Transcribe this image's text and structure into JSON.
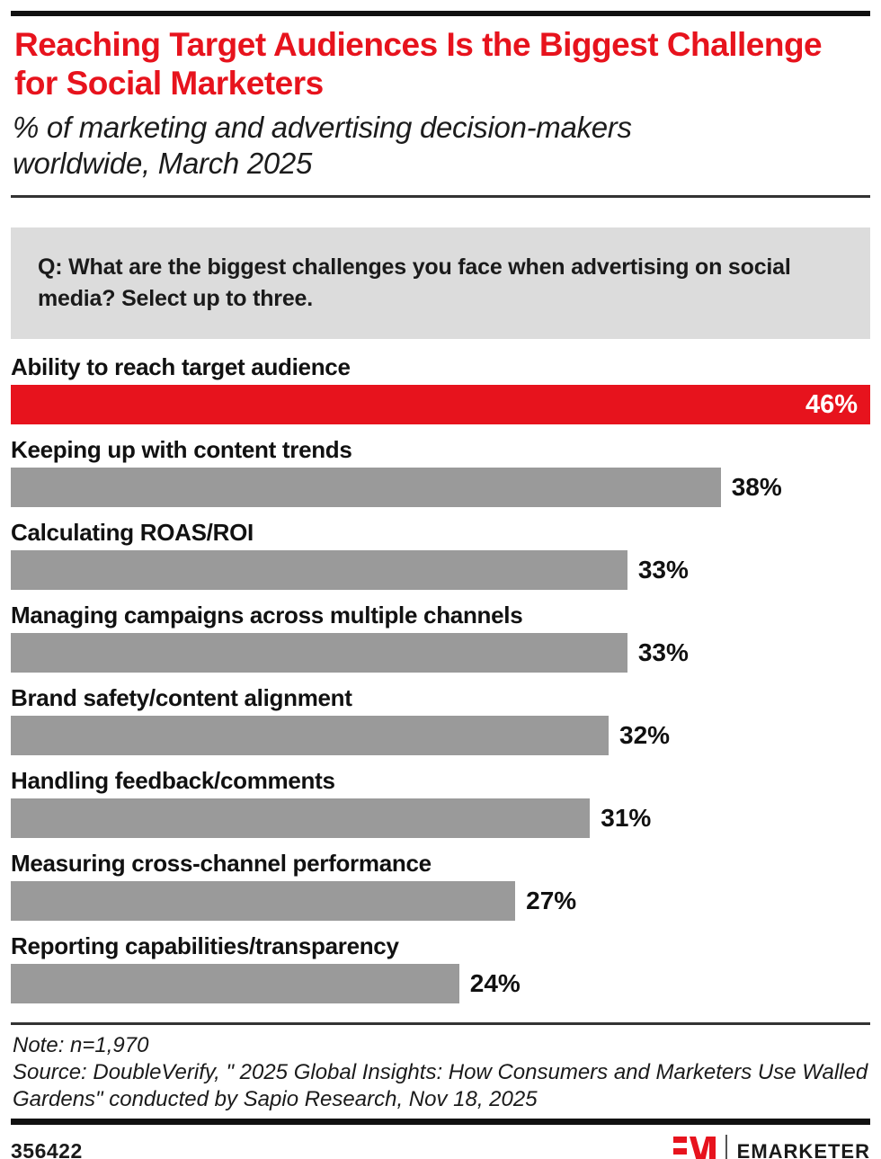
{
  "header": {
    "title": "Reaching Target Audiences Is the Biggest Challenge for Social Marketers",
    "subtitle": "% of marketing and advertising decision-makers worldwide, March 2025"
  },
  "question": {
    "lines": [
      "Q: What are the biggest challenges you face when advertising on social",
      "media? Select up to three."
    ]
  },
  "chart_data": {
    "type": "bar",
    "orientation": "horizontal",
    "categories": [
      "Ability to reach target audience",
      "Keeping up with content trends",
      "Calculating ROAS/ROI",
      "Managing campaigns across multiple channels",
      "Brand safety/content alignment",
      "Handling feedback/comments",
      "Measuring cross-channel performance",
      "Reporting capabilities/transparency"
    ],
    "values": [
      46,
      38,
      33,
      33,
      32,
      31,
      27,
      24
    ],
    "value_labels": [
      "46%",
      "38%",
      "33%",
      "33%",
      "32%",
      "31%",
      "27%",
      "24%"
    ],
    "unit": "%",
    "xlim": [
      0,
      46
    ],
    "highlight_index": 0,
    "bar_colors": {
      "highlight": "#e7131d",
      "default": "#9a9a9a"
    },
    "grid": false,
    "legend": false
  },
  "footer": {
    "note": "Note: n=1,970",
    "source": "Source: DoubleVerify, \" 2025 Global Insights: How Consumers and Marketers Use Walled Gardens\" conducted by Sapio Research, Nov 18, 2025",
    "chart_id": "356422",
    "brand": "EMARKETER"
  },
  "colors": {
    "accent_red": "#e7131d",
    "bar_gray": "#9a9a9a",
    "question_box_bg": "#dcdcdc",
    "text": "#1a1a1a"
  }
}
